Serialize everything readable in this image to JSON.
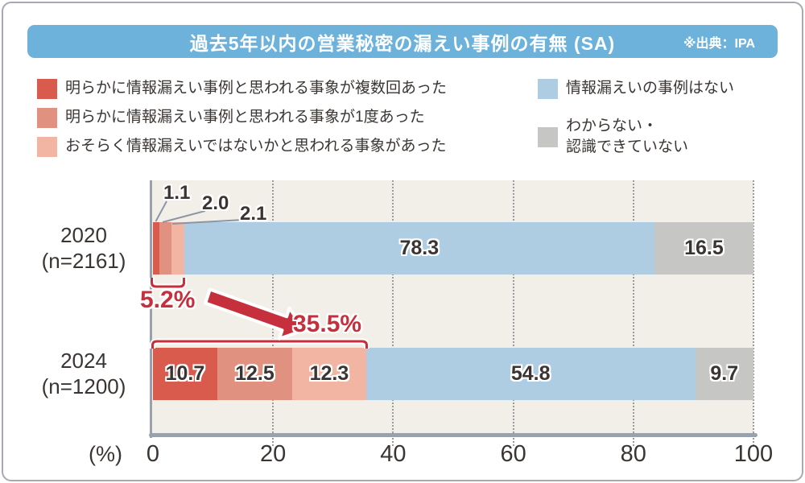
{
  "header": {
    "title": "過去5年以内の営業秘密の漏えい事例の有無 (SA)",
    "source": "※出典：IPA"
  },
  "legend": {
    "left": [
      {
        "label": "明らかに情報漏えい事例と思われる事象が複数回あった",
        "color": "#d85b4d"
      },
      {
        "label": "明らかに情報漏えい事例と思われる事象が1度あった",
        "color": "#e09180"
      },
      {
        "label": "おそらく情報漏えいではないかと思われる事象があった",
        "color": "#f2b5a3"
      }
    ],
    "right": [
      {
        "label": "情報漏えいの事例はない",
        "color": "#aecde3"
      },
      {
        "label": "わからない・\n認識できていない",
        "color": "#c6c6c5"
      }
    ]
  },
  "rows": [
    {
      "year": "2020",
      "n": "(n=2161)"
    },
    {
      "year": "2024",
      "n": "(n=1200)"
    }
  ],
  "chart_data": {
    "type": "bar",
    "orientation": "horizontal",
    "stacked": true,
    "unit": "%",
    "title": "過去5年以内の営業秘密の漏えい事例の有無 (SA)",
    "categories": [
      "2020 (n=2161)",
      "2024 (n=1200)"
    ],
    "series": [
      {
        "name": "明らかに情報漏えい事例と思われる事象が複数回あった",
        "color": "#d85b4d",
        "values": [
          1.1,
          10.7
        ],
        "labels": [
          "1.1",
          "10.7"
        ]
      },
      {
        "name": "明らかに情報漏えい事例と思われる事象が1度あった",
        "color": "#e09180",
        "values": [
          2.0,
          12.5
        ],
        "labels": [
          "2.0",
          "12.5"
        ]
      },
      {
        "name": "おそらく情報漏えいではないかと思われる事象があった",
        "color": "#f2b5a3",
        "values": [
          2.1,
          12.3
        ],
        "labels": [
          "2.1",
          "12.3"
        ]
      },
      {
        "name": "情報漏えいの事例はない",
        "color": "#aecde3",
        "values": [
          78.3,
          54.8
        ],
        "labels": [
          "78.3",
          "54.8"
        ]
      },
      {
        "name": "わからない・認識できていない",
        "color": "#c6c6c5",
        "values": [
          16.5,
          9.7
        ],
        "labels": [
          "16.5",
          "9.7"
        ]
      }
    ],
    "xlim": [
      0,
      100
    ],
    "ticks": [
      0,
      20,
      40,
      60,
      80,
      100
    ],
    "axis_unit_label": "(%)",
    "grid": "dotted-vertical",
    "legend_position": "top",
    "annotations": {
      "callouts_2020": [
        "1.1",
        "2.0",
        "2.1"
      ],
      "sum_2020": "5.2%",
      "sum_2024": "35.5%"
    }
  },
  "colors": {
    "accent": "#c5303c",
    "header_bg": "#6cb2db",
    "plot_bg": "#f2efe9",
    "axis": "#99a1ad",
    "grid": "#9b9b9b",
    "text_dark": "#3a3532",
    "leader": "#8b95a4",
    "frame_border": "#a6aab0"
  }
}
